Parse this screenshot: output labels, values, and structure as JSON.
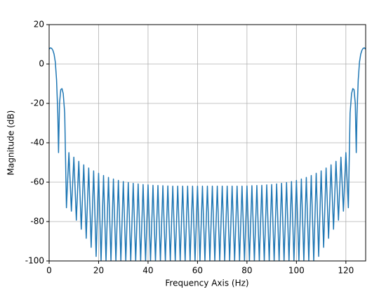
{
  "chart_data": {
    "type": "line",
    "xlabel": "Frequency Axis (Hz)",
    "ylabel": "Magnitude (dB)",
    "xlim": [
      0,
      128
    ],
    "ylim": [
      -100,
      20
    ],
    "xticks": [
      0,
      20,
      40,
      60,
      80,
      100,
      120
    ],
    "yticks": [
      -100,
      -80,
      -60,
      -40,
      -20,
      0,
      20
    ],
    "grid": true,
    "x": [
      0,
      0.5,
      1,
      1.5,
      2,
      2.5,
      3,
      3.5,
      3.8,
      4.2,
      4.7,
      5.2,
      5.7,
      6.3,
      7,
      8,
      9,
      10,
      11,
      12,
      13,
      14,
      15,
      16,
      17,
      18,
      19,
      20,
      21,
      22,
      23,
      24,
      25,
      26,
      27,
      28,
      29,
      30,
      31,
      32,
      33,
      34,
      35,
      36,
      37,
      38,
      39,
      40,
      41,
      42,
      43,
      44,
      45,
      46,
      47,
      48,
      49,
      50,
      51,
      52,
      53,
      54,
      55,
      56,
      57,
      58,
      59,
      60,
      61,
      62,
      63,
      64,
      65,
      66,
      67,
      68,
      69,
      70,
      71,
      72,
      73,
      74,
      75,
      76,
      77,
      78,
      79,
      80,
      81,
      82,
      83,
      84,
      85,
      86,
      87,
      88,
      89,
      90,
      91,
      92,
      93,
      94,
      95,
      96,
      97,
      98,
      99,
      100,
      101,
      102,
      103,
      104,
      105,
      106,
      107,
      108,
      109,
      110,
      111,
      112,
      113,
      114,
      115,
      116,
      117,
      118,
      119,
      120,
      121,
      121.7,
      122.3,
      122.8,
      123.3,
      123.8,
      124.2,
      124.5,
      125,
      125.5,
      126,
      126.5,
      127,
      127.5,
      128
    ],
    "series": [
      {
        "color": "#1f77b4",
        "values": [
          7.5,
          8.2,
          8,
          7,
          5,
          1,
          -8,
          -25,
          -45,
          -20,
          -13,
          -12.5,
          -15,
          -25,
          -73,
          -45,
          -74.7,
          -47.3,
          -79.3,
          -49.4,
          -83.9,
          -51.2,
          -88.5,
          -52.8,
          -93.1,
          -54.3,
          -97.7,
          -55.5,
          -100,
          -56.6,
          -100,
          -57.6,
          -100,
          -58.4,
          -100,
          -59.1,
          -100,
          -59.7,
          -100,
          -60.2,
          -100,
          -60.6,
          -100,
          -60.9,
          -100,
          -61.2,
          -100,
          -61.4,
          -100,
          -61.6,
          -100,
          -61.7,
          -100,
          -61.8,
          -100,
          -61.9,
          -100,
          -62,
          -100,
          -62,
          -100,
          -62,
          -100,
          -62,
          -100,
          -62,
          -100,
          -62,
          -100,
          -62,
          -100,
          -62,
          -100,
          -62,
          -100,
          -62,
          -100,
          -62,
          -100,
          -62,
          -100,
          -62,
          -100,
          -62,
          -100,
          -62,
          -100,
          -61.9,
          -100,
          -61.8,
          -100,
          -61.7,
          -100,
          -61.6,
          -100,
          -61.4,
          -100,
          -61.2,
          -100,
          -60.9,
          -100,
          -60.6,
          -100,
          -60.2,
          -100,
          -59.7,
          -100,
          -59.1,
          -100,
          -58.4,
          -100,
          -57.6,
          -100,
          -56.6,
          -100,
          -55.5,
          -97.7,
          -54.3,
          -93.1,
          -52.8,
          -88.5,
          -51.2,
          -83.9,
          -49.4,
          -79.3,
          -47.3,
          -74.7,
          -45,
          -73,
          -25,
          -15,
          -12.5,
          -13,
          -20,
          -45,
          -25,
          -8,
          1,
          5,
          7,
          8,
          8.2,
          7.5
        ]
      }
    ]
  }
}
